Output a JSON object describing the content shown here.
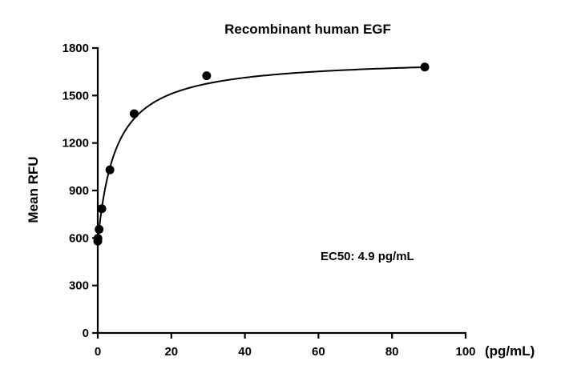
{
  "chart_data": {
    "type": "scatter",
    "title": "Recombinant human EGF",
    "xlabel": "(pg/mL)",
    "ylabel": "Mean RFU",
    "xlim": [
      0,
      100
    ],
    "ylim": [
      0,
      1800
    ],
    "xticks": [
      0,
      20,
      40,
      60,
      80,
      100
    ],
    "yticks": [
      0,
      300,
      600,
      900,
      1200,
      1500,
      1800
    ],
    "grid": false,
    "legend": "none",
    "annotation": "EC50: 4.9 pg/mL",
    "series": [
      {
        "points": [
          {
            "x": 0,
            "y": 580
          },
          {
            "x": 0.04,
            "y": 597
          },
          {
            "x": 0.37,
            "y": 655
          },
          {
            "x": 1.1,
            "y": 785
          },
          {
            "x": 3.3,
            "y": 1030
          },
          {
            "x": 9.9,
            "y": 1385
          },
          {
            "x": 29.6,
            "y": 1625
          },
          {
            "x": 88.9,
            "y": 1680
          }
        ]
      }
    ],
    "fit": {
      "model": "4PL",
      "bottom": 575,
      "top": 1740,
      "ec50": 4.9,
      "hill": 1.0
    }
  }
}
